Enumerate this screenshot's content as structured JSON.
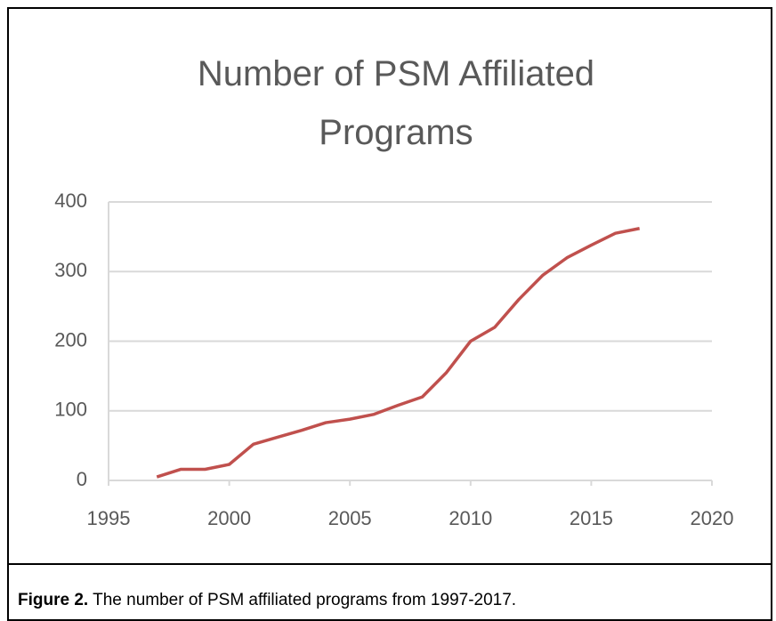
{
  "chart_data": {
    "type": "line",
    "title": "Number of PSM Affiliated Programs",
    "x": [
      1997,
      1998,
      1999,
      2000,
      2001,
      2002,
      2003,
      2004,
      2005,
      2006,
      2007,
      2008,
      2009,
      2010,
      2011,
      2012,
      2013,
      2014,
      2015,
      2016,
      2017
    ],
    "series": [
      {
        "color": "#c0504d",
        "values": [
          5,
          16,
          16,
          23,
          52,
          62,
          72,
          83,
          88,
          95,
          108,
          120,
          155,
          200,
          220,
          260,
          295,
          320,
          338,
          355,
          362
        ]
      }
    ],
    "xlim": [
      1995,
      2020
    ],
    "xticks": [
      1995,
      2000,
      2005,
      2010,
      2015,
      2020
    ],
    "ylim": [
      0,
      400
    ],
    "yticks": [
      0,
      100,
      200,
      300,
      400
    ],
    "grid": true
  },
  "caption": {
    "label": "Figure 2.",
    "text": "The number of PSM affiliated programs from 1997-2017."
  }
}
